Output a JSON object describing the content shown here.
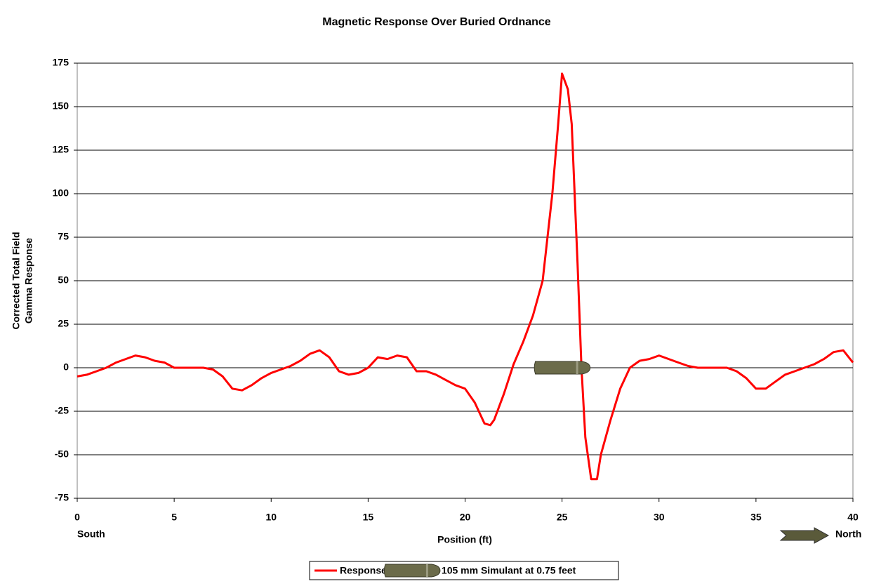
{
  "chart_data": {
    "type": "line",
    "title": "Magnetic Response Over Buried Ordnance",
    "x_label": "Position (ft)",
    "y_label": [
      "Corrected Total Field",
      "Gamma Response"
    ],
    "annotations": {
      "left": "South",
      "right": "North"
    },
    "xlim": [
      0,
      40
    ],
    "xticks": [
      0,
      5,
      10,
      15,
      20,
      25,
      30,
      35,
      40
    ],
    "ylim": [
      -75,
      175
    ],
    "yticks": [
      -75,
      -50,
      -25,
      0,
      25,
      50,
      75,
      100,
      125,
      150,
      175
    ],
    "grid": true,
    "legend": "bottom",
    "series": [
      {
        "name": "Response",
        "color": "#ff0000",
        "x": [
          0,
          0.5,
          1,
          1.5,
          2,
          2.5,
          3,
          3.5,
          4,
          4.5,
          5,
          5.5,
          6,
          6.5,
          7,
          7.5,
          8,
          8.5,
          9,
          9.5,
          10,
          10.5,
          11,
          11.5,
          12,
          12.5,
          13,
          13.5,
          14,
          14.5,
          15,
          15.5,
          16,
          16.5,
          17,
          17.5,
          18,
          18.5,
          19,
          19.5,
          20,
          20.5,
          21,
          21.3,
          21.5,
          22,
          22.5,
          23,
          23.5,
          24,
          24.5,
          24.8,
          25,
          25.3,
          25.5,
          25.8,
          26,
          26.2,
          26.5,
          26.8,
          27,
          27.5,
          28,
          28.5,
          29,
          29.5,
          30,
          30.5,
          31,
          31.5,
          32,
          32.5,
          33,
          33.5,
          34,
          34.5,
          35,
          35.5,
          36,
          36.5,
          37,
          37.5,
          38,
          38.5,
          39,
          39.5,
          40
        ],
        "values": [
          -5,
          -4,
          -2,
          0,
          3,
          5,
          7,
          6,
          4,
          3,
          0,
          0,
          0,
          0,
          -1,
          -5,
          -12,
          -13,
          -10,
          -6,
          -3,
          -1,
          1,
          4,
          8,
          10,
          6,
          -2,
          -4,
          -3,
          0,
          6,
          5,
          7,
          6,
          -2,
          -2,
          -4,
          -7,
          -10,
          -12,
          -20,
          -32,
          -33,
          -30,
          -15,
          2,
          15,
          30,
          50,
          100,
          140,
          169,
          160,
          140,
          60,
          0,
          -40,
          -64,
          -64,
          -50,
          -30,
          -12,
          0,
          4,
          5,
          7,
          5,
          3,
          1,
          0,
          0,
          0,
          0,
          -2,
          -6,
          -12,
          -12,
          -8,
          -4,
          -2,
          0,
          2,
          5,
          9,
          10,
          3
        ]
      },
      {
        "name": "105 mm Simulant at 0.75 feet",
        "color": "#6b6b4a",
        "marker": "shell",
        "x": [
          25
        ],
        "values": [
          0
        ]
      }
    ]
  }
}
